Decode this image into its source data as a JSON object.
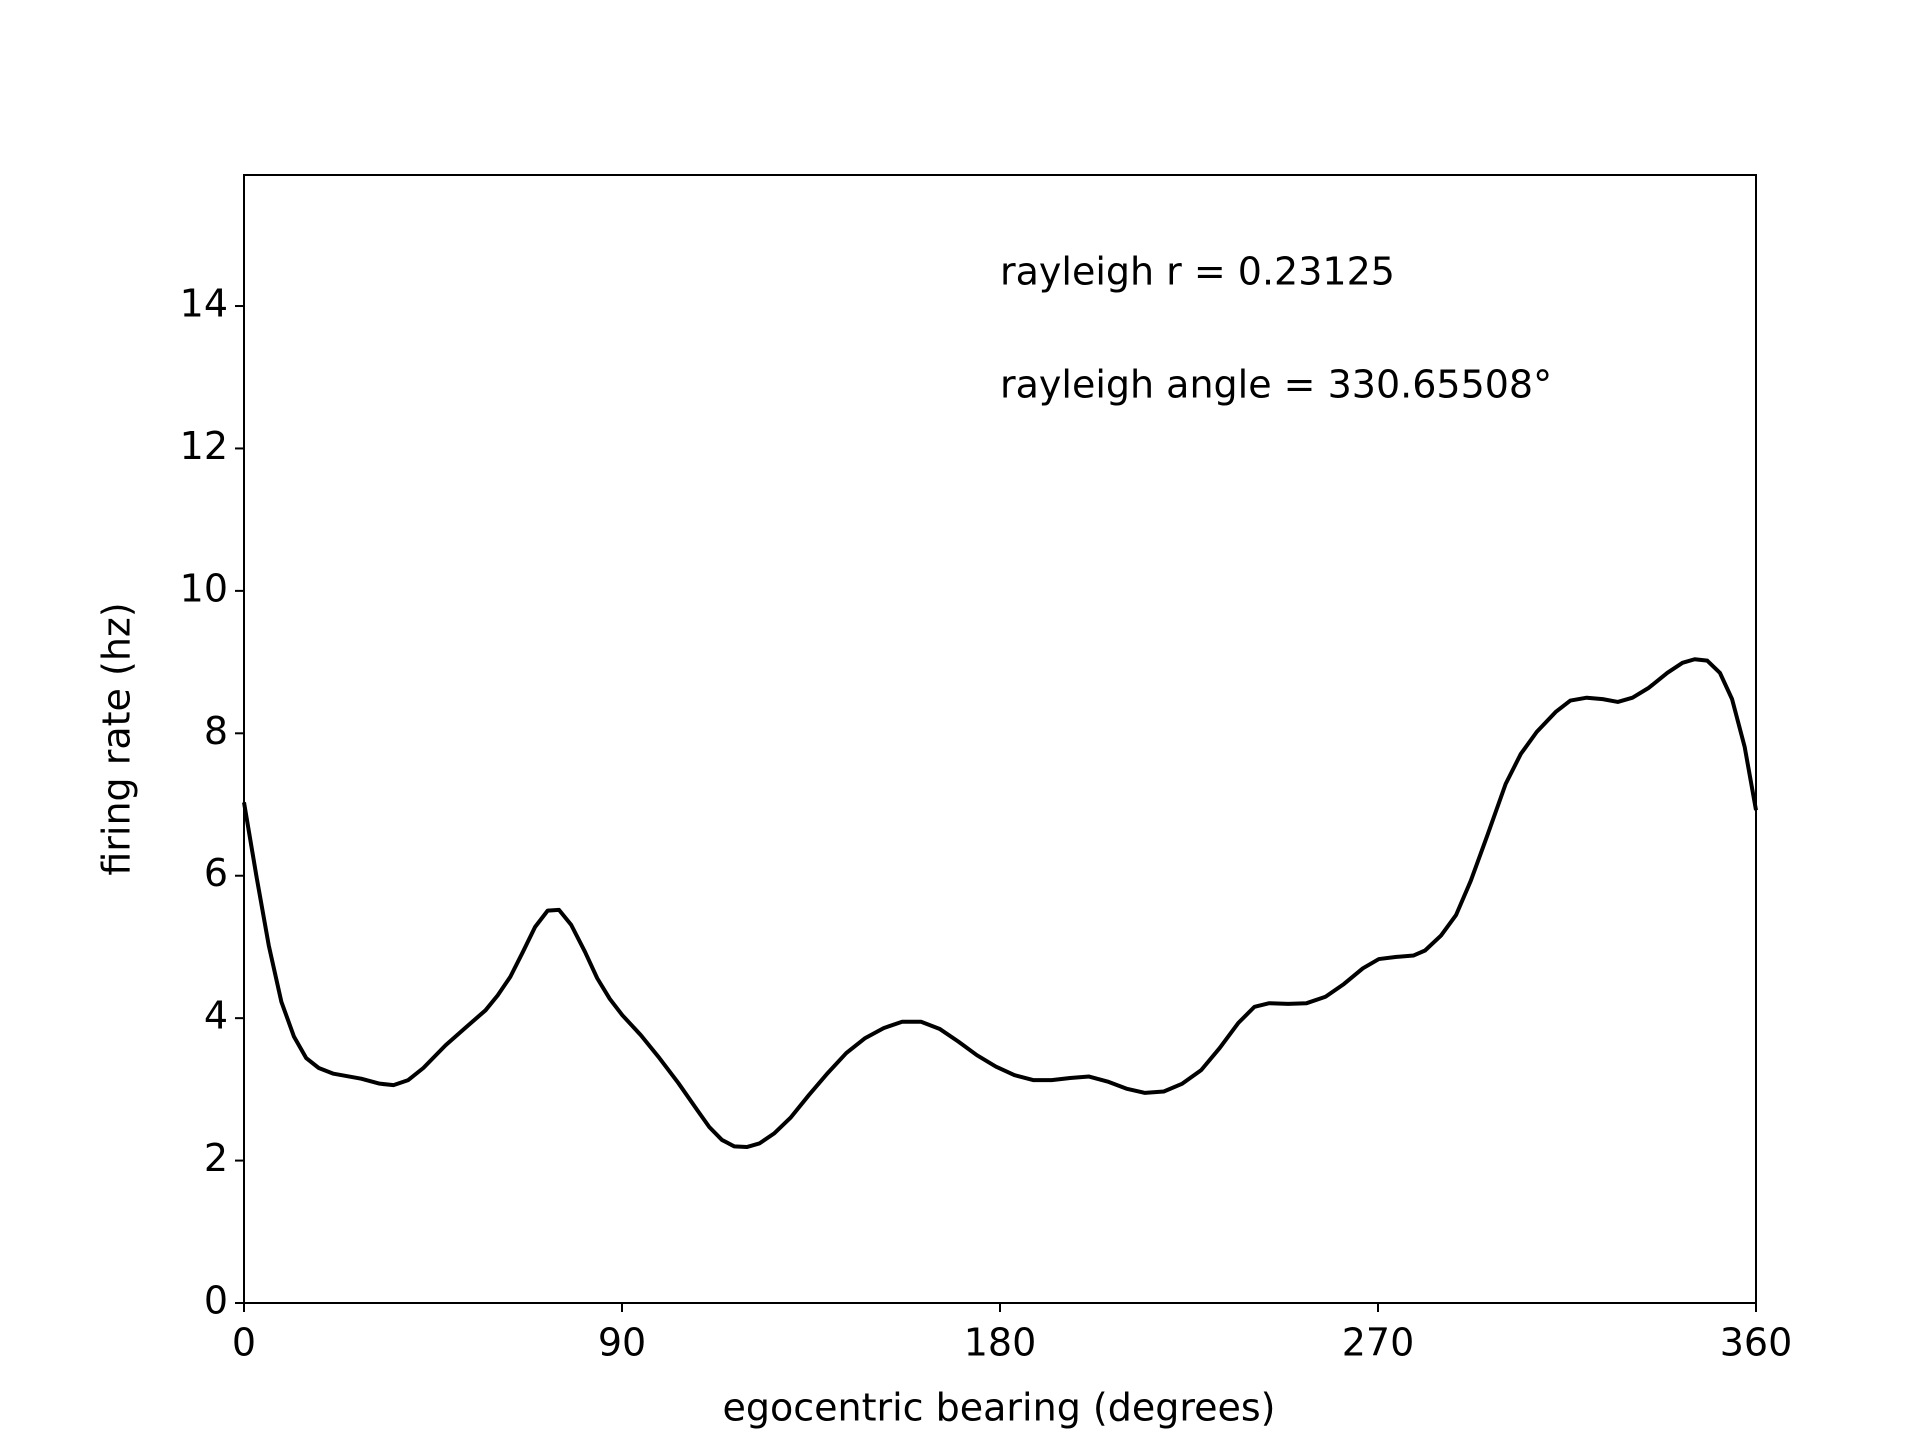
{
  "chart_data": {
    "type": "line",
    "xlabel": "egocentric bearing (degrees)",
    "ylabel": "firing rate (hz)",
    "annotations": [
      "rayleigh r = 0.23125",
      "rayleigh angle = 330.65508°"
    ],
    "xlim": [
      0,
      360
    ],
    "xticks": [
      0,
      90,
      180,
      270,
      360
    ],
    "ylim": [
      0,
      15.84
    ],
    "yticks": [
      0,
      2,
      4,
      6,
      8,
      10,
      12,
      14
    ],
    "grid": false,
    "series": [
      {
        "color": "#000000",
        "x": [
          0,
          3.0,
          5.9,
          8.9,
          11.9,
          14.8,
          17.8,
          21.3,
          27.9,
          32.3,
          35.6,
          39.1,
          42.7,
          48.0,
          53.0,
          57.5,
          60.4,
          63.4,
          66.4,
          69.3,
          72.3,
          75.0,
          77.9,
          81.2,
          84.1,
          87.1,
          90.1,
          94.5,
          98.9,
          103.4,
          107.9,
          110.8,
          113.8,
          116.7,
          119.7,
          122.7,
          126.2,
          130.1,
          134.5,
          139.0,
          143.4,
          147.9,
          152.3,
          156.7,
          161.2,
          165.6,
          170.1,
          174.5,
          179.0,
          183.4,
          187.9,
          192.3,
          196.7,
          201.2,
          205.6,
          210.1,
          214.5,
          219.0,
          223.4,
          227.9,
          232.3,
          236.7,
          240.6,
          244.1,
          248.6,
          253.0,
          257.5,
          261.9,
          266.4,
          270.2,
          274.4,
          278.5,
          281.2,
          285.0,
          288.6,
          292.1,
          296.0,
          300.4,
          304.0,
          307.8,
          312.3,
          315.8,
          319.7,
          323.5,
          327.1,
          330.6,
          334.5,
          338.9,
          342.5,
          345.4,
          348.4,
          351.4,
          354.3,
          357.3,
          360
        ],
        "values": [
          7.03,
          5.98,
          5.02,
          4.23,
          3.74,
          3.44,
          3.3,
          3.22,
          3.15,
          3.08,
          3.06,
          3.13,
          3.3,
          3.62,
          3.88,
          4.11,
          4.32,
          4.58,
          4.93,
          5.28,
          5.51,
          5.52,
          5.31,
          4.93,
          4.56,
          4.27,
          4.04,
          3.76,
          3.44,
          3.09,
          2.71,
          2.47,
          2.29,
          2.2,
          2.19,
          2.24,
          2.38,
          2.6,
          2.92,
          3.23,
          3.51,
          3.72,
          3.86,
          3.95,
          3.95,
          3.85,
          3.67,
          3.48,
          3.32,
          3.2,
          3.13,
          3.13,
          3.16,
          3.18,
          3.11,
          3.01,
          2.95,
          2.97,
          3.08,
          3.27,
          3.58,
          3.93,
          4.16,
          4.21,
          4.2,
          4.21,
          4.3,
          4.48,
          4.7,
          4.83,
          4.86,
          4.88,
          4.95,
          5.16,
          5.45,
          5.93,
          6.56,
          7.29,
          7.71,
          8.02,
          8.3,
          8.46,
          8.5,
          8.48,
          8.44,
          8.5,
          8.64,
          8.85,
          8.99,
          9.04,
          9.02,
          8.85,
          8.48,
          7.81,
          6.92
        ]
      }
    ]
  }
}
